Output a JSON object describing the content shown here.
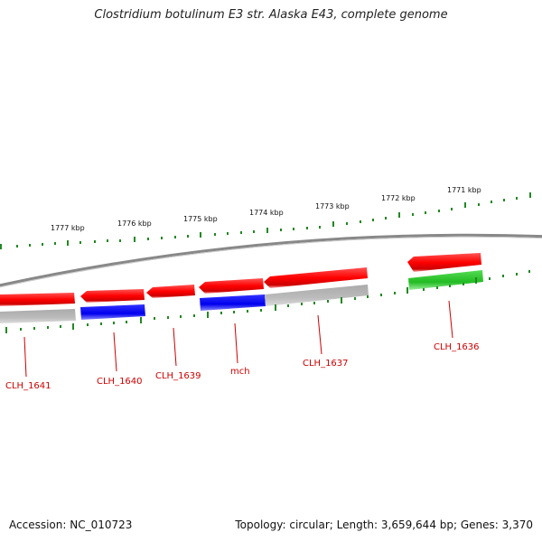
{
  "title": "Clostridium botulinum E3 str. Alaska E43, complete genome",
  "footer": {
    "accession": "Accession: NC_010723",
    "summary": "Topology: circular; Length: 3,659,644 bp; Genes: 3,370"
  },
  "scale": {
    "labels": [
      "1771 kbp",
      "1772 kbp",
      "1773 kbp",
      "1774 kbp",
      "1775 kbp",
      "1776 kbp",
      "1777 kbp"
    ]
  },
  "genes": [
    {
      "label": "CLH_1636",
      "color": "#ff0000"
    },
    {
      "label": "CLH_1637",
      "color": "#ff0000"
    },
    {
      "label": "mch",
      "color": "#ff0000"
    },
    {
      "label": "CLH_1639",
      "color": "#ff0000"
    },
    {
      "label": "CLH_1640",
      "color": "#ff0000"
    },
    {
      "label": "CLH_1641",
      "color": "#ff0000"
    }
  ],
  "colors": {
    "cds": "#ff0000",
    "blue_feature": "#0000ee",
    "green_feature": "#33cc33",
    "gray_feature": "#bbbbbb",
    "backbone": "#888888",
    "ticks": "#228822",
    "label": "#cc0000"
  }
}
